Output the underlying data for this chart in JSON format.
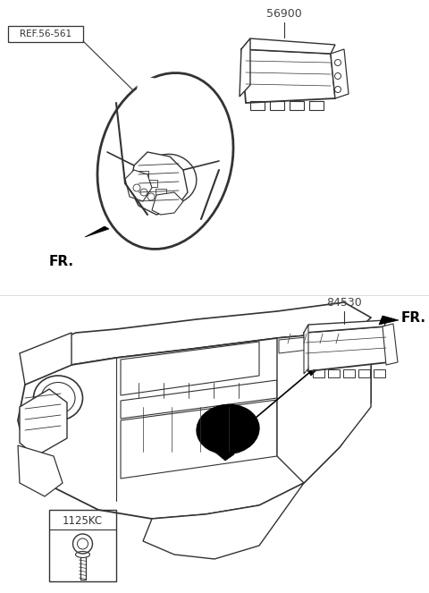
{
  "bg_color": "#ffffff",
  "lc": "#333333",
  "black": "#000000",
  "gray": "#888888",
  "fig_width": 4.8,
  "fig_height": 6.63,
  "dpi": 100,
  "label_56900": "56900",
  "label_ref": "REF.56-561",
  "label_fr_top": "FR.",
  "label_84530": "84530",
  "label_fr_bottom": "FR.",
  "label_1125kc": "1125KC"
}
